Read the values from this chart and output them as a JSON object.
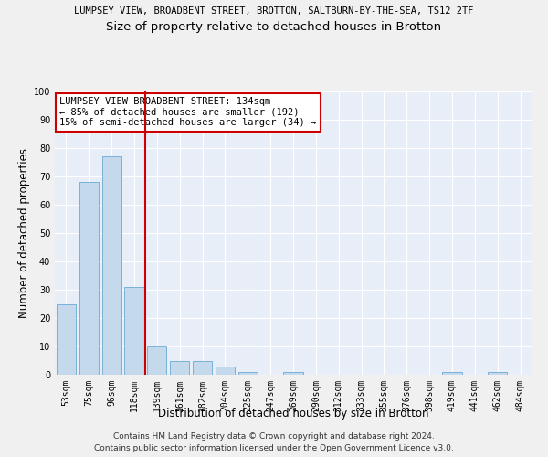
{
  "title1": "LUMPSEY VIEW, BROADBENT STREET, BROTTON, SALTBURN-BY-THE-SEA, TS12 2TF",
  "title2": "Size of property relative to detached houses in Brotton",
  "xlabel": "Distribution of detached houses by size in Brotton",
  "ylabel": "Number of detached properties",
  "categories": [
    "53sqm",
    "75sqm",
    "96sqm",
    "118sqm",
    "139sqm",
    "161sqm",
    "182sqm",
    "204sqm",
    "225sqm",
    "247sqm",
    "269sqm",
    "290sqm",
    "312sqm",
    "333sqm",
    "355sqm",
    "376sqm",
    "398sqm",
    "419sqm",
    "441sqm",
    "462sqm",
    "484sqm"
  ],
  "values": [
    25,
    68,
    77,
    31,
    10,
    5,
    5,
    3,
    1,
    0,
    1,
    0,
    0,
    0,
    0,
    0,
    0,
    1,
    0,
    1,
    0
  ],
  "bar_color": "#c5d9ed",
  "bar_edge_color": "#6aaad4",
  "vline_index": 3.5,
  "vline_color": "#cc0000",
  "annotation_text": "LUMPSEY VIEW BROADBENT STREET: 134sqm\n← 85% of detached houses are smaller (192)\n15% of semi-detached houses are larger (34) →",
  "annotation_box_color": "#ffffff",
  "annotation_box_edge": "#cc0000",
  "footer1": "Contains HM Land Registry data © Crown copyright and database right 2024.",
  "footer2": "Contains public sector information licensed under the Open Government Licence v3.0.",
  "ylim": [
    0,
    100
  ],
  "background_color": "#e8eef8",
  "grid_color": "#ffffff",
  "title1_fontsize": 7.5,
  "title2_fontsize": 9.5,
  "axis_label_fontsize": 8.5,
  "tick_fontsize": 7,
  "footer_fontsize": 6.5,
  "annotation_fontsize": 7.5
}
